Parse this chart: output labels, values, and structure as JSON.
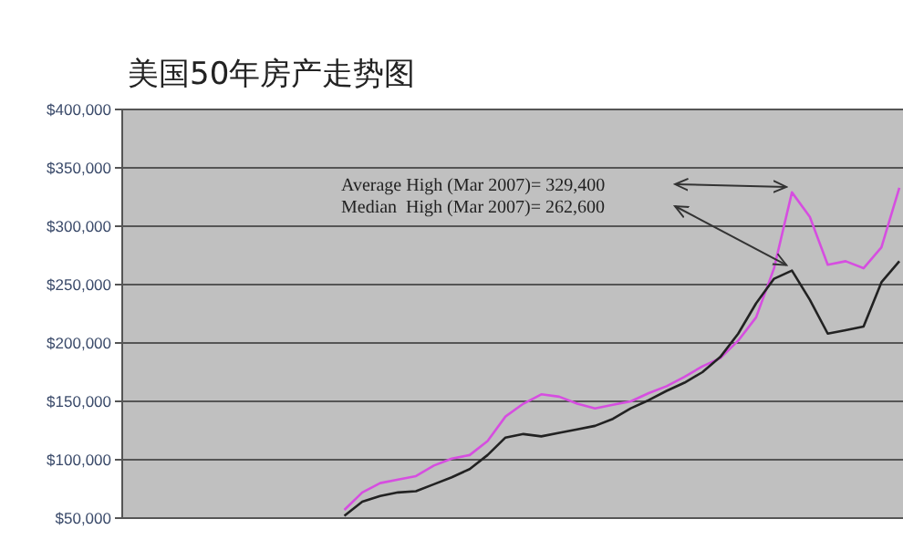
{
  "chart_data": {
    "type": "line",
    "title": "美国50年房产走势图",
    "categories": [
      null,
      null,
      null,
      null,
      null,
      null,
      null,
      null,
      null,
      null,
      null,
      null,
      null,
      null,
      null,
      null,
      null,
      null,
      null,
      null,
      null,
      null,
      null,
      null,
      null,
      null,
      null,
      null,
      null,
      null,
      null,
      null,
      null,
      null,
      null,
      null,
      null,
      null,
      null,
      null,
      null,
      null,
      null,
      null
    ],
    "series": [
      {
        "color": "#d64ee0",
        "values": [
          null,
          null,
          null,
          null,
          null,
          null,
          null,
          null,
          null,
          null,
          null,
          null,
          57000,
          72000,
          80000,
          83000,
          86000,
          95000,
          101000,
          104000,
          116000,
          137000,
          148000,
          156000,
          154000,
          148000,
          144000,
          147000,
          150000,
          157000,
          163000,
          171000,
          180000,
          187000,
          202000,
          222000,
          264000,
          329000,
          308000,
          267000,
          270000,
          264000,
          282000,
          333000
        ]
      },
      {
        "color": "#222222",
        "values": [
          null,
          null,
          null,
          null,
          null,
          null,
          null,
          null,
          null,
          null,
          null,
          null,
          52000,
          64000,
          69000,
          72000,
          73000,
          79000,
          85000,
          92000,
          104000,
          119000,
          122000,
          120000,
          123000,
          126000,
          129000,
          135000,
          144000,
          151000,
          159000,
          166000,
          175000,
          188000,
          208000,
          234000,
          255000,
          262000,
          237000,
          208000,
          211000,
          214000,
          252000,
          270000
        ]
      }
    ],
    "ylim": [
      50000,
      400000
    ],
    "yticks": [
      {
        "value": 50000,
        "label": "$50,000"
      },
      {
        "value": 100000,
        "label": "$100,000"
      },
      {
        "value": 150000,
        "label": "$150,000"
      },
      {
        "value": 200000,
        "label": "$200,000"
      },
      {
        "value": 250000,
        "label": "$250,000"
      },
      {
        "value": 300000,
        "label": "$300,000"
      },
      {
        "value": 350000,
        "label": "$350,000"
      },
      {
        "value": 400000,
        "label": "$400,000"
      }
    ],
    "grid": "y",
    "tick_labels": "y",
    "annotations": [
      "Average High (Mar 2007)= 329,400",
      "Median  High (Mar 2007)= 262,600"
    ]
  }
}
